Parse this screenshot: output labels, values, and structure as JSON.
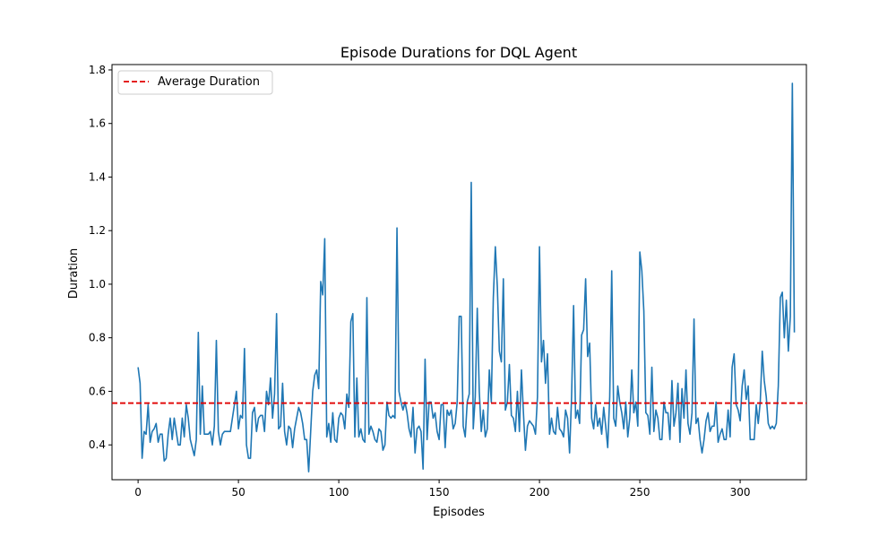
{
  "chart_data": {
    "type": "line",
    "title": "Episode Durations for DQL Agent",
    "xlabel": "Episodes",
    "ylabel": "Duration",
    "xlim": [
      -13,
      333
    ],
    "ylim": [
      0.27,
      1.82
    ],
    "x_ticks": [
      0,
      50,
      100,
      150,
      200,
      250,
      300
    ],
    "y_ticks": [
      0.4,
      0.6,
      0.8,
      1.0,
      1.2,
      1.4,
      1.6,
      1.8
    ],
    "x_tick_labels": [
      "0",
      "50",
      "100",
      "150",
      "200",
      "250",
      "300"
    ],
    "y_tick_labels": [
      "0.4",
      "0.6",
      "0.8",
      "1.0",
      "1.2",
      "1.4",
      "1.6",
      "1.8"
    ],
    "grid": false,
    "legend_position": "upper-left",
    "series": [
      {
        "color": "#1f77b4",
        "x_start": 0,
        "x_step": 1,
        "values": [
          0.69,
          0.63,
          0.35,
          0.45,
          0.44,
          0.55,
          0.41,
          0.45,
          0.46,
          0.48,
          0.41,
          0.44,
          0.44,
          0.34,
          0.35,
          0.44,
          0.5,
          0.42,
          0.5,
          0.45,
          0.4,
          0.4,
          0.5,
          0.43,
          0.55,
          0.5,
          0.42,
          0.39,
          0.36,
          0.42,
          0.82,
          0.44,
          0.62,
          0.44,
          0.44,
          0.44,
          0.45,
          0.4,
          0.47,
          0.79,
          0.45,
          0.4,
          0.44,
          0.45,
          0.45,
          0.45,
          0.45,
          0.5,
          0.55,
          0.6,
          0.46,
          0.51,
          0.5,
          0.76,
          0.4,
          0.35,
          0.35,
          0.52,
          0.54,
          0.45,
          0.5,
          0.51,
          0.51,
          0.45,
          0.6,
          0.55,
          0.65,
          0.5,
          0.59,
          0.89,
          0.46,
          0.47,
          0.63,
          0.45,
          0.4,
          0.47,
          0.46,
          0.39,
          0.46,
          0.5,
          0.54,
          0.52,
          0.48,
          0.42,
          0.42,
          0.3,
          0.45,
          0.6,
          0.66,
          0.68,
          0.61,
          1.01,
          0.96,
          1.17,
          0.43,
          0.48,
          0.41,
          0.52,
          0.42,
          0.41,
          0.5,
          0.52,
          0.51,
          0.46,
          0.59,
          0.54,
          0.86,
          0.89,
          0.43,
          0.65,
          0.43,
          0.46,
          0.42,
          0.41,
          0.95,
          0.44,
          0.47,
          0.45,
          0.42,
          0.41,
          0.46,
          0.45,
          0.38,
          0.4,
          0.56,
          0.51,
          0.5,
          0.51,
          0.5,
          1.21,
          0.6,
          0.56,
          0.53,
          0.56,
          0.52,
          0.46,
          0.43,
          0.54,
          0.37,
          0.46,
          0.47,
          0.45,
          0.31,
          0.72,
          0.42,
          0.56,
          0.56,
          0.5,
          0.52,
          0.45,
          0.42,
          0.55,
          0.55,
          0.39,
          0.53,
          0.51,
          0.53,
          0.46,
          0.48,
          0.56,
          0.88,
          0.88,
          0.47,
          0.43,
          0.56,
          0.59,
          1.38,
          0.46,
          0.58,
          0.91,
          0.6,
          0.45,
          0.53,
          0.43,
          0.46,
          0.68,
          0.56,
          0.95,
          1.14,
          0.99,
          0.75,
          0.71,
          1.02,
          0.53,
          0.56,
          0.7,
          0.51,
          0.5,
          0.45,
          0.6,
          0.45,
          0.68,
          0.52,
          0.38,
          0.47,
          0.49,
          0.48,
          0.47,
          0.44,
          0.58,
          1.14,
          0.71,
          0.79,
          0.63,
          0.74,
          0.44,
          0.5,
          0.45,
          0.44,
          0.54,
          0.46,
          0.45,
          0.43,
          0.53,
          0.5,
          0.37,
          0.58,
          0.92,
          0.5,
          0.53,
          0.48,
          0.81,
          0.83,
          1.02,
          0.73,
          0.78,
          0.5,
          0.46,
          0.55,
          0.47,
          0.5,
          0.44,
          0.54,
          0.47,
          0.39,
          0.58,
          1.05,
          0.5,
          0.47,
          0.62,
          0.56,
          0.52,
          0.46,
          0.56,
          0.43,
          0.5,
          0.68,
          0.52,
          0.56,
          0.47,
          1.12,
          1.05,
          0.9,
          0.52,
          0.51,
          0.44,
          0.69,
          0.45,
          0.53,
          0.5,
          0.42,
          0.42,
          0.56,
          0.52,
          0.52,
          0.42,
          0.64,
          0.47,
          0.52,
          0.63,
          0.41,
          0.61,
          0.5,
          0.68,
          0.48,
          0.44,
          0.52,
          0.87,
          0.48,
          0.5,
          0.42,
          0.37,
          0.42,
          0.49,
          0.52,
          0.45,
          0.47,
          0.47,
          0.56,
          0.41,
          0.44,
          0.46,
          0.42,
          0.42,
          0.53,
          0.43,
          0.69,
          0.74,
          0.55,
          0.53,
          0.49,
          0.62,
          0.68,
          0.57,
          0.62,
          0.42,
          0.42,
          0.42,
          0.55,
          0.48,
          0.56,
          0.75,
          0.64,
          0.58,
          0.48,
          0.46,
          0.47,
          0.46,
          0.48,
          0.62,
          0.95,
          0.97,
          0.8,
          0.94,
          0.75,
          0.88,
          1.75,
          0.82
        ]
      }
    ],
    "reference_line": {
      "label": "Average Duration",
      "value": 0.556,
      "color": "#e00000",
      "style": "dashed"
    }
  }
}
